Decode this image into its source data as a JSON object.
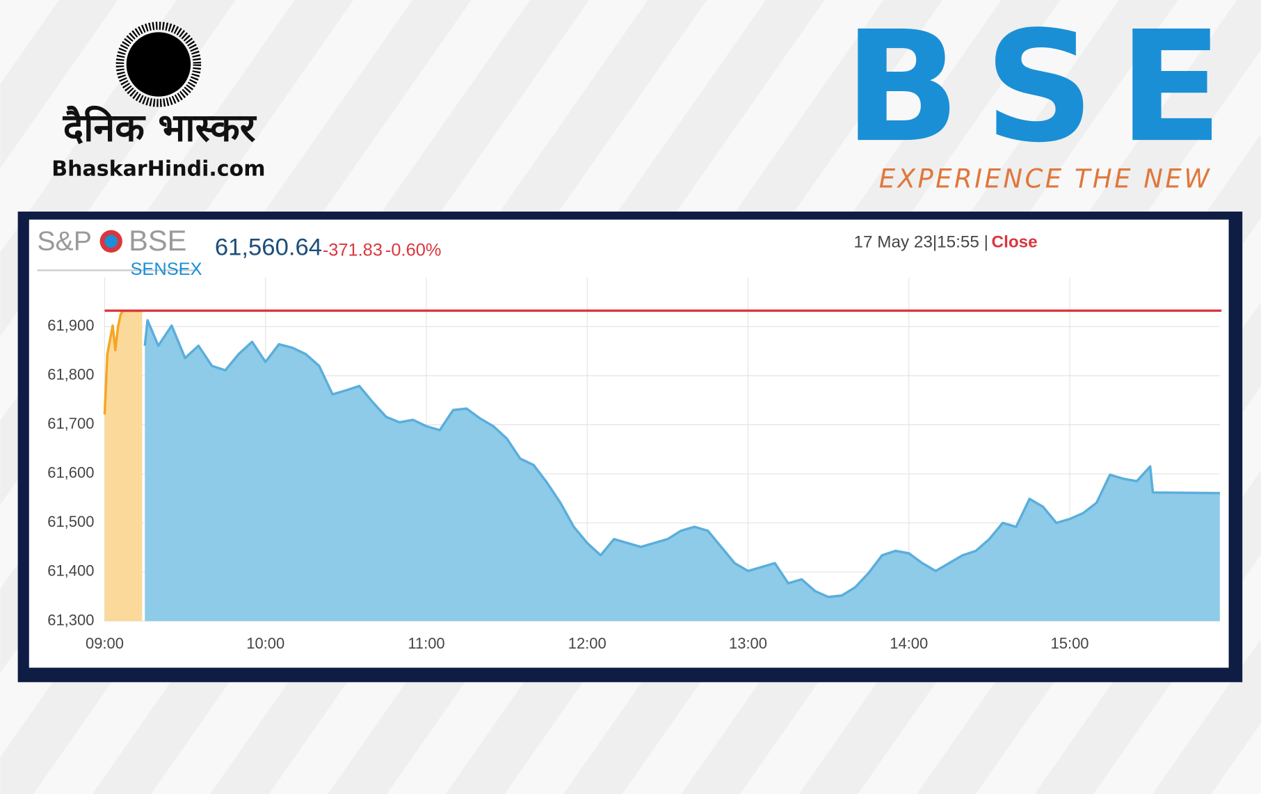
{
  "branding": {
    "newspaper_name": "दैनिक भास्कर",
    "newspaper_site": "BhaskarHindi.com",
    "exchange_logo": "BSE",
    "exchange_tagline": "EXPERIENCE THE NEW"
  },
  "quote": {
    "index_brand": "S&P",
    "index_exchange": "BSE",
    "index_name": "SENSEX",
    "last_value": "61,560.64",
    "change": "-371.83",
    "change_percent": "-0.60%",
    "date_time": "17 May 23|15:55 |",
    "status": "Close"
  },
  "chart_data": {
    "type": "area",
    "grid": true,
    "xlim": [
      "09:00",
      "15:56"
    ],
    "xticks": [
      "09:00",
      "10:00",
      "11:00",
      "12:00",
      "13:00",
      "14:00",
      "15:00"
    ],
    "ylim": [
      61300,
      62000
    ],
    "yticks": [
      {
        "value": 61300,
        "label": "61,300"
      },
      {
        "value": 61400,
        "label": "61,400"
      },
      {
        "value": 61500,
        "label": "61,500"
      },
      {
        "value": 61600,
        "label": "61,600"
      },
      {
        "value": 61700,
        "label": "61,700"
      },
      {
        "value": 61800,
        "label": "61,800"
      },
      {
        "value": 61900,
        "label": "61,900"
      }
    ],
    "previous_close": 61932.47,
    "previous_close_color": "#d9363e",
    "series": [
      {
        "color": "#f5a623",
        "fill": "#fbd99a",
        "x": [
          "09:00",
          "09:01",
          "09:03",
          "09:04",
          "09:05",
          "09:06",
          "09:07",
          "09:14"
        ],
        "values": [
          61721,
          61844,
          61902,
          61852,
          61900,
          61926,
          61932,
          61932
        ]
      },
      {
        "color": "#5aaedb",
        "fill": "#8ecbe8",
        "x": [
          "09:15",
          "09:16",
          "09:20",
          "09:25",
          "09:30",
          "09:35",
          "09:40",
          "09:45",
          "09:50",
          "09:55",
          "10:00",
          "10:05",
          "10:10",
          "10:15",
          "10:20",
          "10:25",
          "10:30",
          "10:35",
          "10:40",
          "10:45",
          "10:50",
          "10:55",
          "11:00",
          "11:05",
          "11:10",
          "11:15",
          "11:20",
          "11:25",
          "11:30",
          "11:35",
          "11:40",
          "11:45",
          "11:50",
          "11:55",
          "12:00",
          "12:05",
          "12:10",
          "12:15",
          "12:20",
          "12:25",
          "12:30",
          "12:35",
          "12:40",
          "12:45",
          "12:50",
          "12:55",
          "13:00",
          "13:05",
          "13:10",
          "13:15",
          "13:20",
          "13:25",
          "13:30",
          "13:35",
          "13:40",
          "13:45",
          "13:50",
          "13:55",
          "14:00",
          "14:05",
          "14:10",
          "14:15",
          "14:20",
          "14:25",
          "14:30",
          "14:35",
          "14:40",
          "14:45",
          "14:50",
          "14:55",
          "15:00",
          "15:05",
          "15:10",
          "15:15",
          "15:20",
          "15:25",
          "15:30",
          "15:31",
          "15:56"
        ],
        "values": [
          61861,
          61913,
          61861,
          61902,
          61836,
          61861,
          61820,
          61811,
          61844,
          61869,
          61828,
          61864,
          61857,
          61844,
          61820,
          61762,
          61770,
          61779,
          61746,
          61716,
          61705,
          61710,
          61697,
          61689,
          61730,
          61733,
          61713,
          61697,
          61672,
          61631,
          61618,
          61582,
          61541,
          61492,
          61459,
          61434,
          61467,
          61459,
          61451,
          61459,
          61467,
          61484,
          61492,
          61484,
          61451,
          61418,
          61402,
          61410,
          61418,
          61377,
          61385,
          61361,
          61349,
          61352,
          61369,
          61398,
          61434,
          61443,
          61438,
          61418,
          61402,
          61418,
          61434,
          61443,
          61467,
          61500,
          61492,
          61549,
          61533,
          61500,
          61508,
          61520,
          61541,
          61598,
          61590,
          61585,
          61615,
          61562,
          61560.64
        ]
      }
    ]
  }
}
